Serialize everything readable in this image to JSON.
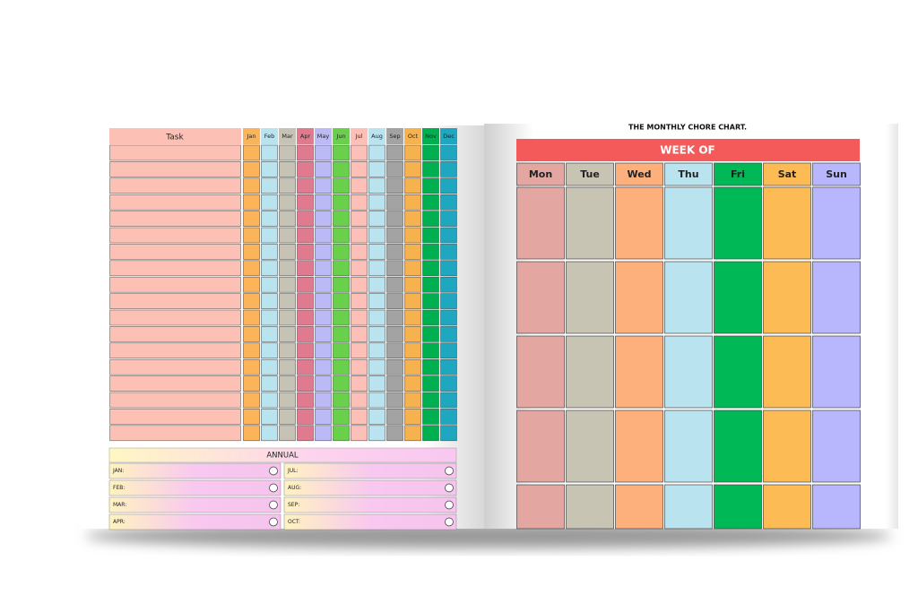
{
  "left_page": {
    "task_header": "Task",
    "months": [
      "Jan",
      "Feb",
      "Mar",
      "Apr",
      "May",
      "Jun",
      "Jul",
      "Aug",
      "Sep",
      "Oct",
      "Nov",
      "Dec"
    ],
    "annual": {
      "title": "ANNUAL",
      "labels": [
        "JAN:",
        "JUL:",
        "FEB:",
        "AUG:",
        "MAR:",
        "SEP:",
        "APR:",
        "OCT:"
      ]
    }
  },
  "right_page": {
    "title": "THE MONTHLY CHORE CHART.",
    "banner": "WEEK OF",
    "days": [
      "Mon",
      "Tue",
      "Wed",
      "Thu",
      "Fri",
      "Sat",
      "Sun"
    ]
  }
}
